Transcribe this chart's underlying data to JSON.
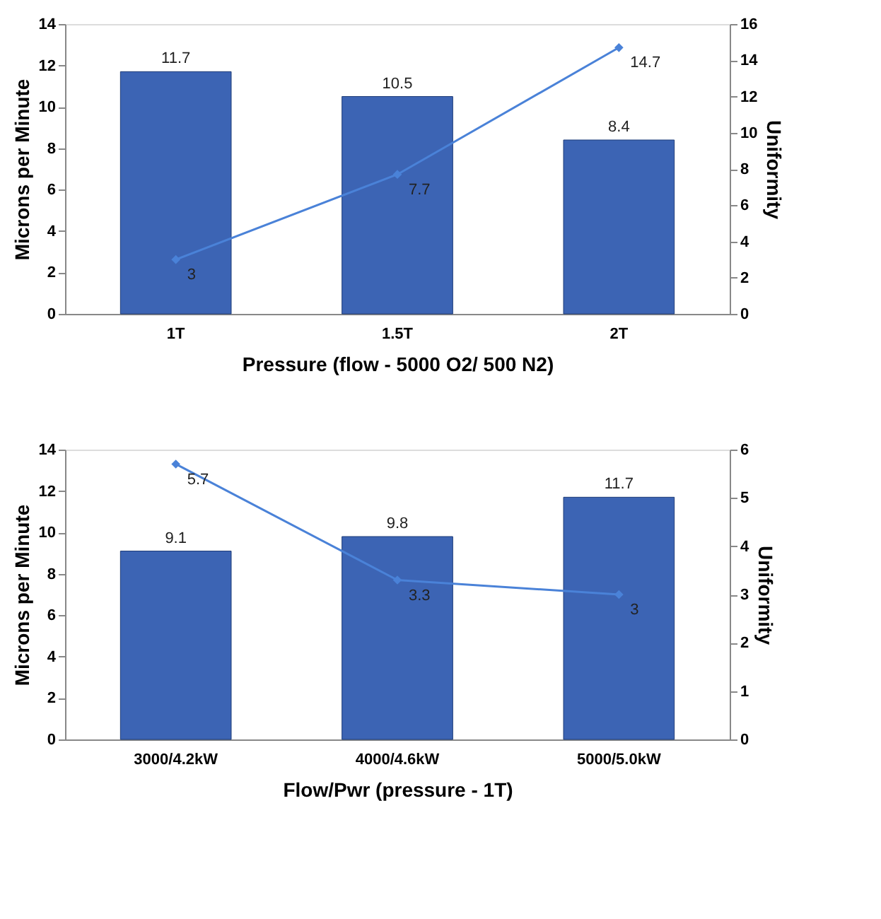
{
  "chart_data": [
    {
      "type": "bar",
      "xlabel": "Pressure (flow - 5000 O2/ 500 N2)",
      "ylabel": "Microns per Minute",
      "y2label": "Uniformity",
      "categories": [
        "1T",
        "1.5T",
        "2T"
      ],
      "series": [
        {
          "color": "#3c64b4",
          "values": [
            11.7,
            10.5,
            8.4
          ]
        },
        {
          "type": "line",
          "axis": "y2",
          "color": "#4a82d8",
          "values": [
            3,
            7.7,
            14.7
          ]
        }
      ],
      "ylim": [
        0,
        14
      ],
      "yticks": [
        0,
        2,
        4,
        6,
        8,
        10,
        12,
        14
      ],
      "y2lim": [
        0,
        16
      ],
      "y2ticks": [
        0,
        2,
        4,
        6,
        8,
        10,
        12,
        14,
        16
      ],
      "data_labels": true,
      "marker": "diamond",
      "grid": false,
      "legend": false
    },
    {
      "type": "bar",
      "xlabel": "Flow/Pwr (pressure - 1T)",
      "ylabel": "Microns per Minute",
      "y2label": "Uniformity",
      "categories": [
        "3000/4.2kW",
        "4000/4.6kW",
        "5000/5.0kW"
      ],
      "series": [
        {
          "color": "#3c64b4",
          "values": [
            9.1,
            9.8,
            11.7
          ]
        },
        {
          "type": "line",
          "axis": "y2",
          "color": "#4a82d8",
          "values": [
            5.7,
            3.3,
            3
          ]
        }
      ],
      "ylim": [
        0,
        14
      ],
      "yticks": [
        0,
        2,
        4,
        6,
        8,
        10,
        12,
        14
      ],
      "y2lim": [
        0,
        6
      ],
      "y2ticks": [
        0,
        1,
        2,
        3,
        4,
        5,
        6
      ],
      "data_labels": true,
      "marker": "diamond",
      "grid": false,
      "legend": false
    }
  ]
}
